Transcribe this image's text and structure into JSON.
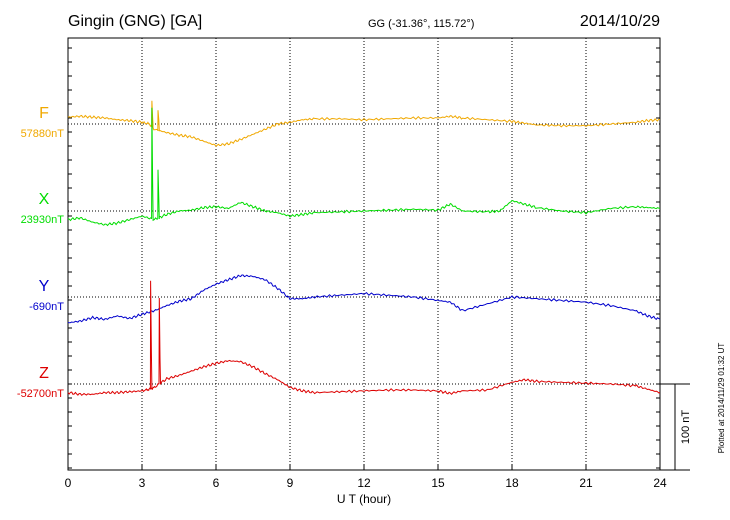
{
  "header": {
    "station": "Gingin (GNG)  [GA]",
    "coords": "GG (-31.36°, 115.72°)",
    "date": "2014/10/29"
  },
  "side_note": "Plotted at 2014/11/29 01:32 UT",
  "scale_label": "100 nT",
  "colors": {
    "F": "#f0a800",
    "X": "#00dd00",
    "Y": "#0000cc",
    "Z": "#dd0000"
  },
  "chart_data": {
    "type": "line",
    "title": "Gingin (GNG)  [GA]",
    "xlabel": "U T (hour)",
    "xlim": [
      0,
      24
    ],
    "xticks": [
      "0",
      "3",
      "6",
      "9",
      "12",
      "15",
      "18",
      "21",
      "24"
    ],
    "grid": true,
    "scale_bar_nT": 100,
    "series": [
      {
        "name": "F",
        "baseline_label": "57880nT",
        "baseline_nT": 57880,
        "color": "#f0a800",
        "x": [
          0,
          0.5,
          1,
          1.5,
          2,
          2.5,
          3,
          3.3,
          3.5,
          4,
          4.5,
          5,
          5.5,
          6,
          6.5,
          7,
          7.5,
          8,
          8.5,
          9,
          9.5,
          10,
          11,
          12,
          13,
          14,
          15,
          15.5,
          16,
          17,
          18,
          18.5,
          19,
          20,
          21,
          22,
          23,
          23.5,
          24
        ],
        "y": [
          8,
          9,
          8,
          7,
          5,
          4,
          2,
          0,
          -6,
          -10,
          -13,
          -15,
          -20,
          -25,
          -23,
          -18,
          -12,
          -6,
          0,
          2,
          5,
          6,
          6,
          5,
          6,
          7,
          7,
          9,
          7,
          5,
          3,
          1,
          -1,
          -2,
          -2,
          0,
          2,
          4,
          5
        ],
        "spikes": [
          [
            3.4,
            27
          ],
          [
            3.65,
            16
          ]
        ]
      },
      {
        "name": "X",
        "baseline_label": "23930nT",
        "baseline_nT": 23930,
        "color": "#00dd00",
        "x": [
          0,
          0.5,
          1,
          1.5,
          2,
          2.5,
          3,
          3.5,
          4,
          4.5,
          5,
          5.5,
          6,
          6.5,
          7,
          7.5,
          8,
          8.5,
          9,
          9.5,
          10,
          11,
          12,
          13,
          14,
          15,
          15.5,
          16,
          17,
          17.5,
          18,
          18.5,
          19,
          20,
          21,
          22,
          23,
          23.5,
          24
        ],
        "y": [
          -10,
          -8,
          -13,
          -16,
          -14,
          -10,
          -6,
          -10,
          -4,
          0,
          1,
          4,
          5,
          3,
          10,
          5,
          0,
          -2,
          -6,
          -4,
          -2,
          -1,
          0,
          1,
          2,
          1,
          8,
          0,
          -1,
          0,
          12,
          8,
          4,
          0,
          -2,
          3,
          5,
          4,
          3
        ],
        "spikes": [
          [
            3.4,
            120
          ],
          [
            3.65,
            48
          ]
        ]
      },
      {
        "name": "Y",
        "baseline_label": "-690nT",
        "baseline_nT": -690,
        "color": "#0000cc",
        "x": [
          0,
          0.5,
          1,
          1.5,
          2,
          2.5,
          3,
          3.5,
          4,
          4.5,
          5,
          5.5,
          6,
          6.5,
          7,
          7.5,
          8,
          8.5,
          9,
          9.5,
          10,
          11,
          12,
          13,
          14,
          15,
          15.5,
          16,
          17,
          18,
          19,
          20,
          21,
          22,
          23,
          23.5,
          24
        ],
        "y": [
          -30,
          -28,
          -24,
          -26,
          -22,
          -25,
          -20,
          -16,
          -10,
          -5,
          -2,
          8,
          15,
          20,
          25,
          24,
          20,
          10,
          -2,
          -2,
          0,
          2,
          4,
          2,
          0,
          -4,
          -6,
          -16,
          -8,
          0,
          -2,
          -4,
          -6,
          -10,
          -16,
          -22,
          -26
        ],
        "spikes": []
      },
      {
        "name": "Z",
        "baseline_label": "-52700nT",
        "baseline_nT": -52700,
        "color": "#dd0000",
        "x": [
          0,
          0.5,
          1,
          1.5,
          2,
          2.5,
          3,
          3.3,
          3.5,
          4,
          4.5,
          5,
          5.5,
          6,
          6.5,
          7,
          7.5,
          8,
          8.5,
          9,
          9.5,
          10,
          11,
          12,
          13,
          14,
          15,
          15.5,
          16,
          17,
          18,
          18.5,
          19,
          20,
          21,
          22,
          23,
          23.5,
          24
        ],
        "y": [
          -10,
          -12,
          -12,
          -10,
          -10,
          -9,
          -8,
          -6,
          -4,
          6,
          10,
          15,
          20,
          24,
          27,
          26,
          20,
          12,
          5,
          -4,
          -8,
          -10,
          -9,
          -8,
          -7,
          -7,
          -8,
          -11,
          -8,
          -7,
          2,
          5,
          3,
          2,
          1,
          0,
          -2,
          -6,
          -10
        ],
        "spikes": [
          [
            3.35,
            120
          ],
          [
            3.7,
            100
          ]
        ]
      }
    ]
  }
}
